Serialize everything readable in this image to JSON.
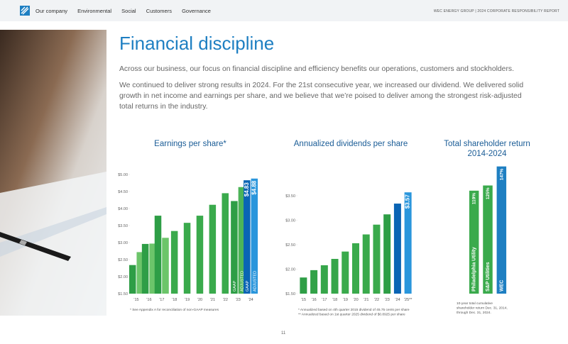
{
  "nav": {
    "items": [
      "Our company",
      "Environmental",
      "Social",
      "Customers",
      "Governance"
    ],
    "report": "WEC ENERGY GROUP | 2024 CORPORATE RESPONSIBILITY REPORT"
  },
  "title": "Financial discipline",
  "paragraphs": [
    "Across our business, our focus on financial discipline and efficiency benefits our operations, customers and stockholders.",
    "We continued to deliver strong results in 2024. For the 21st consecutive year, we increased our dividend. We delivered solid growth in net income and earnings per share, and we believe that we’re poised to deliver among the strongest risk-adjusted total returns in the industry."
  ],
  "page_number": "11",
  "chart_data": [
    {
      "type": "bar",
      "title": "Earnings per share*",
      "categories": [
        "’15",
        "’16",
        "’17",
        "’18",
        "’19",
        "’20",
        "’21",
        "’22",
        "’23",
        "’24"
      ],
      "series": [
        {
          "name": "GAAP",
          "values": [
            2.34,
            2.96,
            3.79,
            3.34,
            3.58,
            3.79,
            4.11,
            4.45,
            4.22,
            4.83
          ],
          "colors": [
            "#2e9e46",
            "#2e9e46",
            "#2e9e46",
            "#3aaa4c",
            "#3aaa4c",
            "#3aaa4c",
            "#3aaa4c",
            "#3aaa4c",
            "#2e9e46",
            "#0a64b4"
          ],
          "value_labels": [
            null,
            null,
            null,
            null,
            null,
            null,
            null,
            null,
            null,
            "$4.83"
          ]
        },
        {
          "name": "ADJUSTED",
          "values": [
            2.72,
            2.97,
            3.14,
            null,
            null,
            null,
            null,
            null,
            4.63,
            4.88
          ],
          "colors": [
            "#6cc56a",
            "#6cc56a",
            "#6cc56a",
            null,
            null,
            null,
            null,
            null,
            "#4cb458",
            "#2a96dc"
          ],
          "value_labels": [
            null,
            null,
            null,
            null,
            null,
            null,
            null,
            null,
            null,
            "$4.88"
          ]
        }
      ],
      "ylim": [
        1.5,
        5.0
      ],
      "yticks": [
        {
          "value": 1.5,
          "label": "$1.50"
        },
        {
          "value": 2.0,
          "label": "$2.00"
        },
        {
          "value": 2.5,
          "label": "$2.50"
        },
        {
          "value": 3.0,
          "label": "$3.00"
        },
        {
          "value": 3.5,
          "label": "$3.50"
        },
        {
          "value": 4.0,
          "label": "$4.00"
        },
        {
          "value": 4.5,
          "label": "$4.50"
        },
        {
          "value": 5.0,
          "label": "$5.00"
        }
      ],
      "footnotes": [
        "* See Appendix A for reconciliation of non-GAAP measures"
      ]
    },
    {
      "type": "bar",
      "title": "Annualized dividends per share",
      "categories": [
        "’15",
        "’16",
        "’17",
        "’18",
        "’19",
        "’20",
        "’21",
        "’22",
        "’23",
        "’24",
        "’25**"
      ],
      "series": [
        {
          "name": null,
          "values": [
            1.83,
            1.98,
            2.08,
            2.21,
            2.36,
            2.53,
            2.71,
            2.91,
            3.12,
            3.34,
            3.57
          ],
          "colors": [
            "#2e9e46",
            "#32a248",
            "#36a64a",
            "#36a64a",
            "#3aaa4c",
            "#3aaa4c",
            "#3aaa4c",
            "#3aaa4c",
            "#2e9e46",
            "#0a64b4",
            "#2a96dc"
          ],
          "value_labels": [
            null,
            null,
            null,
            null,
            null,
            null,
            null,
            null,
            null,
            null,
            "$3.57"
          ]
        }
      ],
      "ylim": [
        1.5,
        3.5
      ],
      "yticks": [
        {
          "value": 1.5,
          "label": "$1.50"
        },
        {
          "value": 2.0,
          "label": "$2.00"
        },
        {
          "value": 2.5,
          "label": "$2.50"
        },
        {
          "value": 3.0,
          "label": "$3.00"
        },
        {
          "value": 3.5,
          "label": "$3.50"
        }
      ],
      "footnotes": [
        "* Annualized based on 4th quarter 2015 dividend of 45.75 cents per share",
        "** Annualized based on 1st quarter 2025 dividend of $0.8925 per share"
      ]
    },
    {
      "type": "bar",
      "title": "Total shareholder return",
      "subtitle": "2014-2024",
      "categories": [
        "Philadelphia Utility",
        "S&P Utilities",
        "WEC"
      ],
      "series": [
        {
          "name": null,
          "values": [
            119,
            125,
            147
          ],
          "colors": [
            "#3aaa4c",
            "#3aaa4c",
            "#1e7fc2"
          ],
          "value_labels": [
            "119%",
            "125%",
            "147%"
          ]
        }
      ],
      "footnotes": [
        "10-year total cumulative",
        "shareholder return Dec. 31, 2014,",
        "through Dec. 31, 2024."
      ]
    }
  ]
}
